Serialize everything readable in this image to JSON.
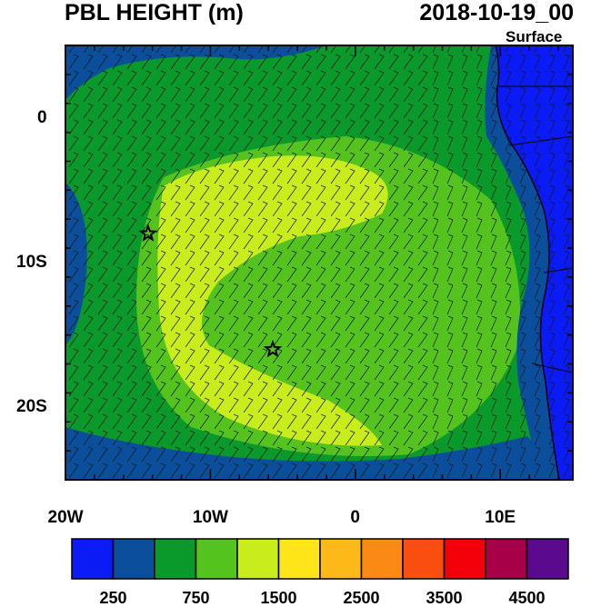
{
  "header": {
    "title": "PBL HEIGHT (m)",
    "datetime": "2018-10-19_00",
    "level": "Surface"
  },
  "map": {
    "lon_range": [
      -20,
      15
    ],
    "lat_range": [
      -25,
      5
    ],
    "x_ticks": [
      {
        "lon": -20,
        "label": "20W"
      },
      {
        "lon": -10,
        "label": "10W"
      },
      {
        "lon": 0,
        "label": "0"
      },
      {
        "lon": 10,
        "label": "10E"
      }
    ],
    "y_ticks": [
      {
        "lat": 0,
        "label": "0"
      },
      {
        "lat": -10,
        "label": "10S"
      },
      {
        "lat": -20,
        "label": "20S"
      }
    ],
    "markers": [
      {
        "name": "star-marker-north",
        "lon": -14.3,
        "lat": -8.0
      },
      {
        "name": "star-marker-south",
        "lon": -5.7,
        "lat": -16.0
      }
    ],
    "wind_barbs": true
  },
  "colorbar": {
    "colors": [
      "#0a1bf5",
      "#0b4f9c",
      "#0a9a2b",
      "#55c31e",
      "#c8ec1c",
      "#fde51a",
      "#fcb917",
      "#fb8a14",
      "#fa4e10",
      "#f4000a",
      "#a80048",
      "#5b0a8d"
    ],
    "labels": [
      {
        "index": 1,
        "text": "250"
      },
      {
        "index": 3,
        "text": "750"
      },
      {
        "index": 5,
        "text": "1500"
      },
      {
        "index": 7,
        "text": "2500"
      },
      {
        "index": 9,
        "text": "3500"
      },
      {
        "index": 11,
        "text": "4500"
      }
    ]
  }
}
